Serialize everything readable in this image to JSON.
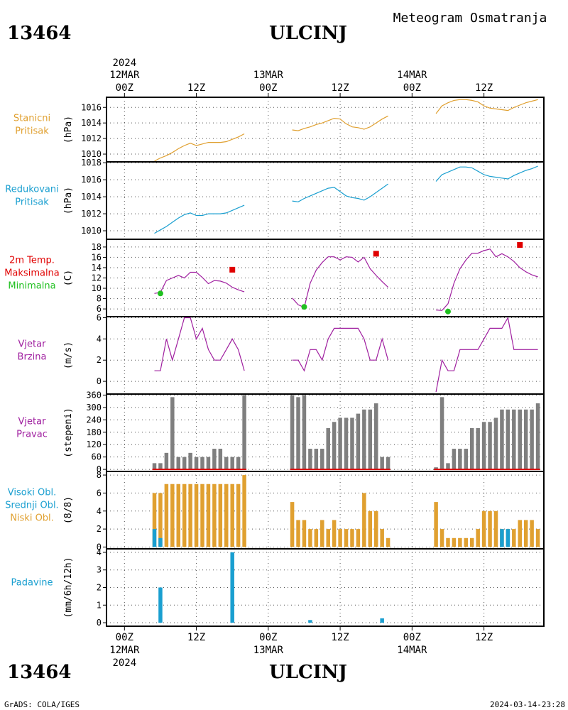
{
  "header": {
    "station_id": "13464",
    "station_name": "ULCINJ",
    "subtitle": "Meteogram Osmatranja",
    "footer_left": "GrADS: COLA/IGES",
    "footer_right": "2024-03-14-23:28"
  },
  "time_axis": {
    "year": "2024",
    "day_labels": [
      "12MAR",
      "13MAR",
      "14MAR"
    ],
    "hour_labels": [
      "00Z",
      "12Z",
      "00Z",
      "12Z",
      "00Z",
      "12Z"
    ],
    "range_hours": [
      -3,
      70
    ]
  },
  "colors": {
    "orange": "#e0a030",
    "cyan": "#1a9fd0",
    "magenta": "#a020a0",
    "red": "#e00000",
    "green": "#20c020",
    "gray": "#7f7f7f",
    "black": "#000000"
  },
  "chart_data": [
    {
      "type": "line",
      "key": "station_pressure",
      "label_lines": [
        "Stanicni",
        "Pritisak"
      ],
      "label_colors": [
        "orange",
        "orange"
      ],
      "ylabel": "(hPa)",
      "ylim": [
        1009,
        1017.3
      ],
      "yticks": [
        1010,
        1012,
        1014,
        1016
      ],
      "series": [
        {
          "color": "orange",
          "segments": [
            {
              "x": [
                5,
                6,
                7,
                8,
                9,
                10,
                11,
                12,
                13,
                14,
                15,
                16,
                17,
                18,
                19,
                20
              ],
              "y": [
                1009.1,
                1009.5,
                1009.8,
                1010.2,
                1010.7,
                1011.1,
                1011.4,
                1011.1,
                1011.3,
                1011.5,
                1011.5,
                1011.5,
                1011.6,
                1011.9,
                1012.2,
                1012.6
              ]
            },
            {
              "x": [
                28,
                29,
                30,
                31,
                32,
                33,
                34,
                35,
                36,
                37,
                38,
                39,
                40,
                41,
                42,
                43,
                44
              ],
              "y": [
                1013.1,
                1013.0,
                1013.3,
                1013.5,
                1013.8,
                1014.0,
                1014.3,
                1014.6,
                1014.5,
                1013.9,
                1013.5,
                1013.4,
                1013.2,
                1013.5,
                1014.0,
                1014.5,
                1014.9
              ]
            },
            {
              "x": [
                52,
                53,
                54,
                55,
                56,
                57,
                58,
                59,
                60,
                61,
                62,
                63,
                64,
                65,
                66,
                67,
                68,
                69
              ],
              "y": [
                1015.2,
                1016.2,
                1016.6,
                1016.9,
                1017.0,
                1017.0,
                1016.9,
                1016.7,
                1016.2,
                1015.9,
                1015.8,
                1015.7,
                1015.6,
                1016.0,
                1016.3,
                1016.6,
                1016.8,
                1017.0
              ]
            }
          ]
        }
      ]
    },
    {
      "type": "line",
      "key": "reduced_pressure",
      "label_lines": [
        "Redukovani",
        "Pritisak"
      ],
      "label_colors": [
        "cyan",
        "cyan"
      ],
      "ylabel": "(hPa)",
      "ylim": [
        1009,
        1018.1
      ],
      "yticks": [
        1010,
        1012,
        1014,
        1016,
        1018
      ],
      "series": [
        {
          "color": "cyan",
          "segments": [
            {
              "x": [
                5,
                6,
                7,
                8,
                9,
                10,
                11,
                12,
                13,
                14,
                15,
                16,
                17,
                18,
                19,
                20
              ],
              "y": [
                1009.7,
                1010.1,
                1010.5,
                1011.0,
                1011.5,
                1011.9,
                1012.1,
                1011.8,
                1011.8,
                1012.0,
                1012.0,
                1012.0,
                1012.1,
                1012.4,
                1012.7,
                1013.0
              ]
            },
            {
              "x": [
                28,
                29,
                30,
                31,
                32,
                33,
                34,
                35,
                36,
                37,
                38,
                39,
                40,
                41,
                42,
                43,
                44
              ],
              "y": [
                1013.5,
                1013.4,
                1013.8,
                1014.1,
                1014.4,
                1014.7,
                1015.0,
                1015.1,
                1014.6,
                1014.1,
                1013.9,
                1013.8,
                1013.6,
                1014.0,
                1014.5,
                1015.0,
                1015.5
              ]
            },
            {
              "x": [
                52,
                53,
                54,
                55,
                56,
                57,
                58,
                59,
                60,
                61,
                62,
                63,
                64,
                65,
                66,
                67,
                68,
                69
              ],
              "y": [
                1015.8,
                1016.6,
                1016.9,
                1017.2,
                1017.5,
                1017.5,
                1017.4,
                1017.0,
                1016.6,
                1016.4,
                1016.3,
                1016.2,
                1016.1,
                1016.5,
                1016.8,
                1017.1,
                1017.3,
                1017.6
              ]
            }
          ]
        }
      ]
    },
    {
      "type": "line",
      "key": "temperature",
      "label_lines": [
        "2m Temp.",
        "Maksimalna",
        "Minimalna"
      ],
      "label_colors": [
        "red",
        "red",
        "green"
      ],
      "ylabel": "(C)",
      "ylim": [
        4.5,
        19.5
      ],
      "yticks": [
        6,
        8,
        10,
        12,
        14,
        16,
        18
      ],
      "series": [
        {
          "color": "magenta",
          "segments": [
            {
              "x": [
                5,
                6,
                7,
                8,
                9,
                10,
                11,
                12,
                13,
                14,
                15,
                16,
                17,
                18,
                19,
                20
              ],
              "y": [
                9.0,
                9.2,
                11.5,
                12.0,
                12.5,
                12.0,
                13.1,
                13.1,
                12.1,
                10.9,
                11.5,
                11.4,
                11.0,
                10.2,
                9.7,
                9.3
              ]
            },
            {
              "x": [
                28,
                29,
                30,
                31,
                32,
                33,
                34,
                35,
                36,
                37,
                38,
                39,
                40,
                41,
                42,
                43,
                44
              ],
              "y": [
                8.1,
                6.8,
                6.3,
                11.0,
                13.5,
                15.0,
                16.1,
                16.1,
                15.5,
                16.1,
                16.0,
                15.1,
                16.0,
                13.8,
                12.5,
                11.3,
                10.2
              ]
            },
            {
              "x": [
                52,
                53,
                54,
                55,
                56,
                57,
                58,
                59,
                60,
                61,
                62,
                63,
                64,
                65,
                66,
                67,
                68,
                69
              ],
              "y": [
                5.8,
                5.7,
                7.0,
                11.0,
                13.8,
                15.5,
                16.8,
                16.8,
                17.3,
                17.6,
                16.1,
                16.7,
                16.1,
                15.2,
                14.0,
                13.2,
                12.6,
                12.2
              ]
            }
          ]
        }
      ],
      "markers": [
        {
          "x": [
            18,
            42,
            66
          ],
          "y": [
            13.6,
            16.7,
            18.4
          ],
          "color": "red",
          "shape": "square"
        },
        {
          "x": [
            6,
            30,
            54
          ],
          "y": [
            9.0,
            6.4,
            5.5
          ],
          "color": "green",
          "shape": "circle"
        }
      ]
    },
    {
      "type": "line",
      "key": "wind_speed",
      "label_lines": [
        "Vjetar",
        "Brzina"
      ],
      "label_colors": [
        "magenta",
        "magenta"
      ],
      "ylabel": "(m/s)",
      "ylim": [
        -1.2,
        6.1
      ],
      "yticks": [
        0,
        2,
        4,
        6
      ],
      "series": [
        {
          "color": "magenta",
          "segments": [
            {
              "x": [
                5,
                6,
                7,
                8,
                9,
                10,
                11,
                12,
                13,
                14,
                15,
                16,
                17,
                18,
                19,
                20
              ],
              "y": [
                1,
                1,
                4,
                2,
                4,
                6,
                6,
                4,
                5,
                3,
                2,
                2,
                3,
                4,
                3,
                1
              ]
            },
            {
              "x": [
                28,
                29,
                30,
                31,
                32,
                33,
                34,
                35,
                36,
                37,
                38,
                39,
                40,
                41,
                42,
                43,
                44
              ],
              "y": [
                2,
                2,
                1,
                3,
                3,
                2,
                4,
                5,
                5,
                5,
                5,
                5,
                4,
                2,
                2,
                4,
                2
              ]
            },
            {
              "x": [
                52,
                53,
                54,
                55,
                56,
                57,
                58,
                59,
                60,
                61,
                62,
                63,
                64,
                65,
                66,
                67,
                68,
                69
              ],
              "y": [
                -1,
                2,
                1,
                1,
                3,
                3,
                3,
                3,
                4,
                5,
                5,
                5,
                6,
                3,
                3,
                3,
                3,
                3
              ]
            }
          ]
        }
      ]
    },
    {
      "type": "bar",
      "key": "wind_direction",
      "label_lines": [
        "Vjetar",
        "Pravac"
      ],
      "label_colors": [
        "magenta",
        "magenta"
      ],
      "ylabel": "(stepeni)",
      "ylim": [
        -10,
        365
      ],
      "yticks": [
        0,
        60,
        120,
        180,
        240,
        300,
        360
      ],
      "series": [
        {
          "color": "gray",
          "x": [
            5,
            6,
            7,
            8,
            9,
            10,
            11,
            12,
            13,
            14,
            15,
            16,
            17,
            18,
            19,
            20
          ],
          "values": [
            30,
            30,
            80,
            350,
            60,
            60,
            80,
            60,
            60,
            60,
            100,
            100,
            60,
            60,
            60,
            360
          ]
        },
        {
          "color": "gray",
          "x": [
            28,
            29,
            30,
            31,
            32,
            33,
            34,
            35,
            36,
            37,
            38,
            39,
            40,
            41,
            42,
            43,
            44
          ],
          "values": [
            360,
            350,
            360,
            100,
            100,
            100,
            200,
            230,
            250,
            250,
            250,
            270,
            290,
            290,
            320,
            60,
            60
          ]
        },
        {
          "color": "gray",
          "x": [
            52,
            53,
            54,
            55,
            56,
            57,
            58,
            59,
            60,
            61,
            62,
            63,
            64,
            65,
            66,
            67,
            68,
            69
          ],
          "values": [
            10,
            350,
            30,
            100,
            100,
            100,
            200,
            200,
            230,
            230,
            250,
            290,
            290,
            290,
            290,
            290,
            290,
            320
          ]
        }
      ],
      "baseline_color": "red"
    },
    {
      "type": "bar",
      "key": "clouds",
      "label_lines": [
        "Visoki Obl.",
        "Srednji Obl.",
        "Niski Obl."
      ],
      "label_colors": [
        "cyan",
        "cyan",
        "orange"
      ],
      "ylabel": "(8/8)",
      "ylim": [
        -0.2,
        8.4
      ],
      "yticks": [
        0,
        2,
        4,
        6,
        8
      ],
      "series": [
        {
          "name": "Niski Obl.",
          "color": "orange",
          "x": [
            5,
            6,
            7,
            8,
            9,
            10,
            11,
            12,
            13,
            14,
            15,
            16,
            17,
            18,
            19,
            20,
            28,
            29,
            30,
            31,
            32,
            33,
            34,
            35,
            36,
            37,
            38,
            39,
            40,
            41,
            42,
            43,
            44,
            52,
            53,
            54,
            55,
            56,
            57,
            58,
            59,
            60,
            61,
            62,
            63,
            64,
            65,
            66,
            67,
            68,
            69
          ],
          "values": [
            6,
            6,
            7,
            7,
            7,
            7,
            7,
            7,
            7,
            7,
            7,
            7,
            7,
            7,
            7,
            8,
            5,
            3,
            3,
            2,
            2,
            3,
            2,
            3,
            2,
            2,
            2,
            2,
            6,
            4,
            4,
            2,
            1,
            5,
            2,
            1,
            1,
            1,
            1,
            1,
            2,
            4,
            4,
            4,
            2,
            2,
            2,
            3,
            3,
            3,
            2
          ]
        },
        {
          "name": "Visoki Obl.",
          "color": "cyan",
          "x": [
            5,
            6,
            63,
            64
          ],
          "values": [
            2,
            1,
            2,
            2
          ]
        }
      ]
    },
    {
      "type": "bar",
      "key": "precipitation",
      "label_lines": [
        "Padavine"
      ],
      "label_colors": [
        "cyan"
      ],
      "ylabel": "(mm/6h/12h)",
      "ylim": [
        -0.2,
        4.2
      ],
      "yticks": [
        0,
        1,
        2,
        3,
        4
      ],
      "series": [
        {
          "color": "cyan",
          "x": [
            6,
            18,
            31,
            43
          ],
          "values": [
            2.0,
            4.0,
            0.15,
            0.25
          ]
        }
      ]
    }
  ]
}
